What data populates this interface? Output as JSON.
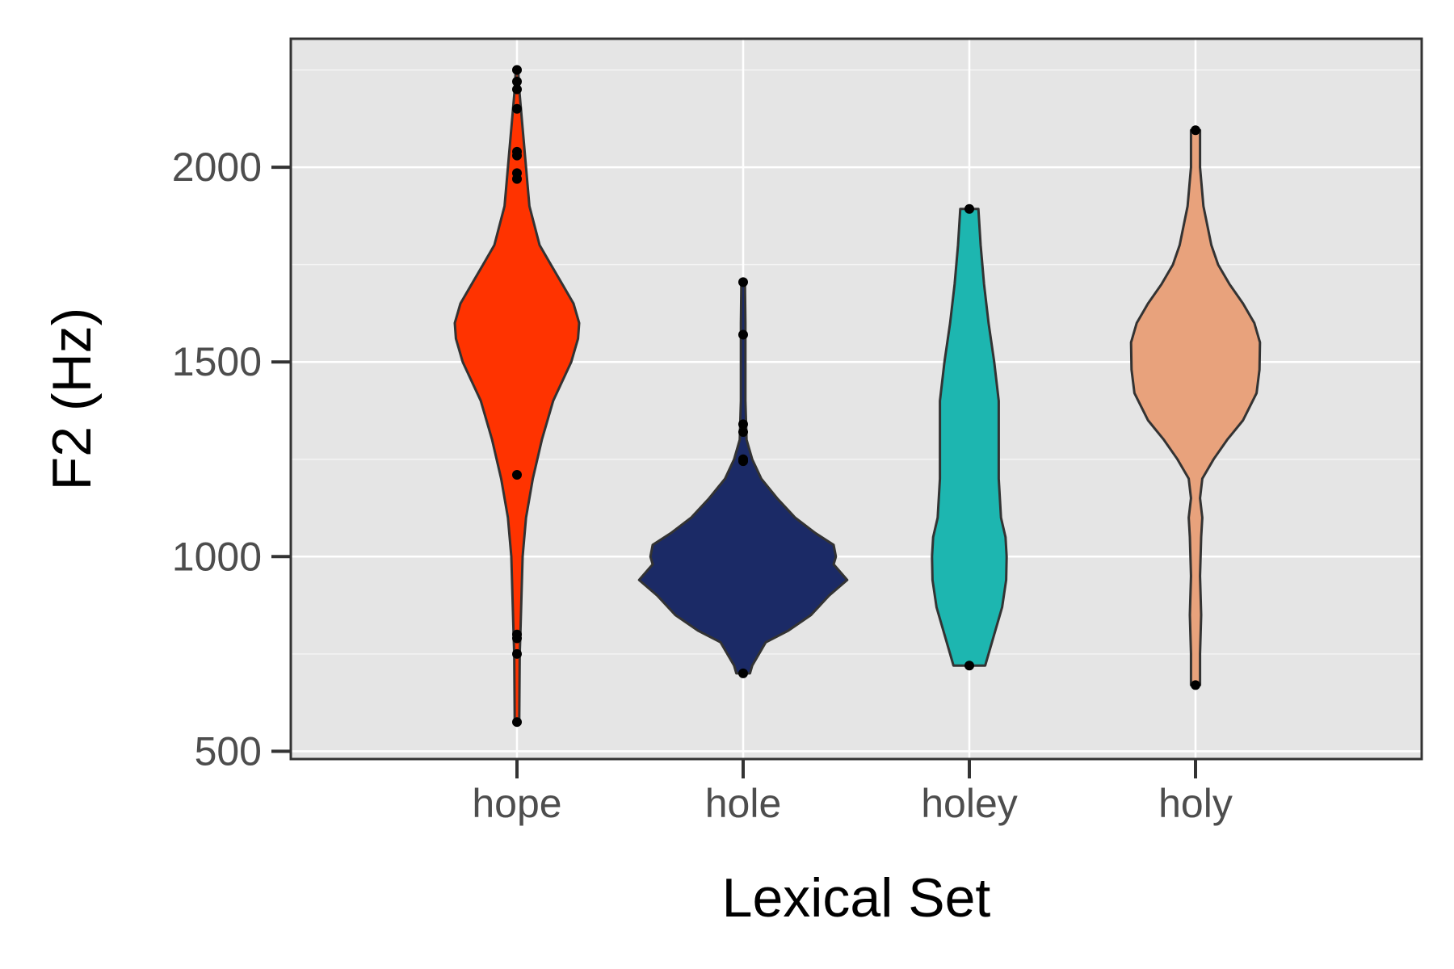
{
  "chart_data": {
    "type": "violin",
    "title": "",
    "xlabel": "Lexical Set",
    "ylabel": "F2 (Hz)",
    "ylim": [
      480,
      2330
    ],
    "y_ticks": [
      500,
      1000,
      1500,
      2000
    ],
    "grid": true,
    "legend": "none",
    "panel_background": "#e5e5e5",
    "categories": [
      "hope",
      "hole",
      "holey",
      "holy"
    ],
    "series": [
      {
        "category": "hope",
        "color": "#ff3300",
        "range": [
          575,
          2255
        ],
        "max_half_width": 0.275,
        "density_profile": [
          [
            575,
            0.01
          ],
          [
            750,
            0.012
          ],
          [
            800,
            0.015
          ],
          [
            900,
            0.02
          ],
          [
            1000,
            0.025
          ],
          [
            1100,
            0.04
          ],
          [
            1200,
            0.07
          ],
          [
            1300,
            0.11
          ],
          [
            1400,
            0.16
          ],
          [
            1500,
            0.24
          ],
          [
            1560,
            0.27
          ],
          [
            1600,
            0.275
          ],
          [
            1650,
            0.25
          ],
          [
            1700,
            0.2
          ],
          [
            1750,
            0.15
          ],
          [
            1800,
            0.1
          ],
          [
            1900,
            0.055
          ],
          [
            2000,
            0.04
          ],
          [
            2100,
            0.025
          ],
          [
            2200,
            0.01
          ],
          [
            2255,
            0.005
          ]
        ],
        "outliers": [
          575,
          750,
          790,
          800,
          1210,
          1970,
          1985,
          2030,
          2040,
          2150,
          2200,
          2220,
          2250
        ]
      },
      {
        "category": "hole",
        "color": "#1b2a66",
        "range": [
          700,
          1705
        ],
        "max_half_width": 0.46,
        "density_profile": [
          [
            700,
            0.03
          ],
          [
            720,
            0.04
          ],
          [
            740,
            0.06
          ],
          [
            780,
            0.1
          ],
          [
            810,
            0.2
          ],
          [
            850,
            0.3
          ],
          [
            900,
            0.38
          ],
          [
            940,
            0.46
          ],
          [
            980,
            0.4
          ],
          [
            1000,
            0.41
          ],
          [
            1030,
            0.4
          ],
          [
            1060,
            0.32
          ],
          [
            1100,
            0.23
          ],
          [
            1150,
            0.15
          ],
          [
            1200,
            0.08
          ],
          [
            1250,
            0.04
          ],
          [
            1300,
            0.015
          ],
          [
            1400,
            0.01
          ],
          [
            1500,
            0.01
          ],
          [
            1600,
            0.01
          ],
          [
            1705,
            0.008
          ]
        ],
        "outliers": [
          700,
          1245,
          1250,
          1320,
          1340,
          1570,
          1705
        ]
      },
      {
        "category": "holey",
        "color": "#1db6b0",
        "range": [
          720,
          1893
        ],
        "max_half_width": 0.165,
        "density_profile": [
          [
            720,
            0.07
          ],
          [
            800,
            0.11
          ],
          [
            870,
            0.145
          ],
          [
            940,
            0.163
          ],
          [
            1000,
            0.165
          ],
          [
            1050,
            0.16
          ],
          [
            1100,
            0.14
          ],
          [
            1200,
            0.13
          ],
          [
            1300,
            0.13
          ],
          [
            1400,
            0.13
          ],
          [
            1500,
            0.11
          ],
          [
            1600,
            0.085
          ],
          [
            1700,
            0.065
          ],
          [
            1800,
            0.05
          ],
          [
            1893,
            0.04
          ]
        ],
        "outliers": [
          720,
          1893
        ]
      },
      {
        "category": "holy",
        "color": "#e8a27c",
        "range": [
          670,
          2095
        ],
        "max_half_width": 0.285,
        "density_profile": [
          [
            670,
            0.02
          ],
          [
            750,
            0.02
          ],
          [
            850,
            0.025
          ],
          [
            950,
            0.02
          ],
          [
            1050,
            0.025
          ],
          [
            1100,
            0.03
          ],
          [
            1150,
            0.02
          ],
          [
            1200,
            0.03
          ],
          [
            1250,
            0.08
          ],
          [
            1300,
            0.14
          ],
          [
            1350,
            0.21
          ],
          [
            1420,
            0.27
          ],
          [
            1480,
            0.283
          ],
          [
            1550,
            0.285
          ],
          [
            1600,
            0.26
          ],
          [
            1650,
            0.21
          ],
          [
            1700,
            0.15
          ],
          [
            1750,
            0.1
          ],
          [
            1800,
            0.07
          ],
          [
            1900,
            0.035
          ],
          [
            2000,
            0.02
          ],
          [
            2095,
            0.02
          ]
        ],
        "outliers": [
          670,
          2095
        ]
      }
    ]
  }
}
